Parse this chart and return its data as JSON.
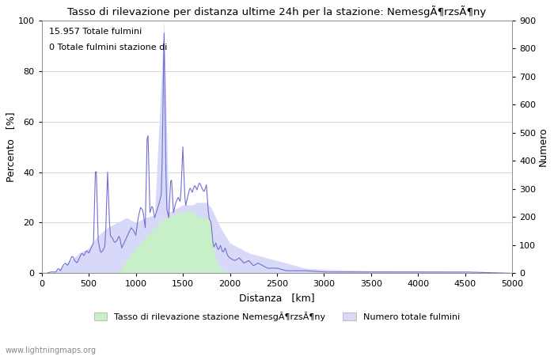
{
  "title": "Tasso di rilevazione per distanza ultime 24h per la stazione: NemesgÃ¶rzsÃ¶ny",
  "xlabel": "Distanza   [km]",
  "ylabel_left": "Percento   [%]",
  "ylabel_right": "Numero",
  "annotation_line1": "15.957 Totale fulmini",
  "annotation_line2": "0 Totale fulmini stazione di",
  "legend_label1": "Tasso di rilevazione stazione NemesgÃ¶rzsÃ¶ny",
  "legend_label2": "Numero totale fulmini",
  "watermark": "www.lightningmaps.org",
  "xlim": [
    0,
    5000
  ],
  "ylim_left": [
    0,
    100
  ],
  "ylim_right": [
    0,
    900
  ],
  "fill_color_green": "#c8f0c8",
  "fill_color_blue": "#d8d8f8",
  "line_color": "#7070d0",
  "background_color": "#ffffff",
  "grid_color": "#c8c8c8",
  "x_ticks": [
    0,
    500,
    1000,
    1500,
    2000,
    2500,
    3000,
    3500,
    4000,
    4500,
    5000
  ],
  "y_ticks_left": [
    0,
    20,
    40,
    60,
    80,
    100
  ],
  "y_ticks_right": [
    0,
    100,
    200,
    300,
    400,
    500,
    600,
    700,
    800,
    900
  ]
}
